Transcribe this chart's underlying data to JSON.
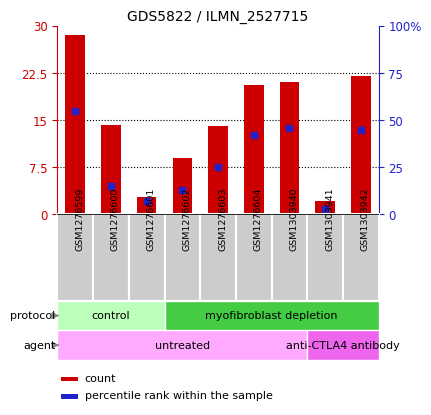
{
  "title": "GDS5822 / ILMN_2527715",
  "samples": [
    "GSM1276599",
    "GSM1276600",
    "GSM1276601",
    "GSM1276602",
    "GSM1276603",
    "GSM1276604",
    "GSM1303940",
    "GSM1303941",
    "GSM1303942"
  ],
  "counts": [
    28.5,
    14.2,
    2.8,
    9.0,
    14.0,
    20.5,
    21.0,
    2.2,
    22.0
  ],
  "percentiles": [
    55,
    15,
    7,
    13,
    25,
    42,
    46,
    3,
    45
  ],
  "ylim_left": [
    0,
    30
  ],
  "ylim_right": [
    0,
    100
  ],
  "yticks_left": [
    0,
    7.5,
    15,
    22.5,
    30
  ],
  "yticks_right": [
    0,
    25,
    50,
    75,
    100
  ],
  "yticklabels_left": [
    "0",
    "7.5",
    "15",
    "22.5",
    "30"
  ],
  "yticklabels_right": [
    "0",
    "25",
    "50",
    "75",
    "100%"
  ],
  "bar_color": "#cc0000",
  "dot_color": "#2222cc",
  "protocol_groups": [
    {
      "label": "control",
      "start": 0,
      "end": 3,
      "color": "#bbffbb"
    },
    {
      "label": "myofibroblast depletion",
      "start": 3,
      "end": 9,
      "color": "#44cc44"
    }
  ],
  "agent_groups": [
    {
      "label": "untreated",
      "start": 0,
      "end": 7,
      "color": "#ffaaff"
    },
    {
      "label": "anti-CTLA4 antibody",
      "start": 7,
      "end": 9,
      "color": "#ee66ee"
    }
  ],
  "legend_items": [
    {
      "color": "#cc0000",
      "label": "count"
    },
    {
      "color": "#2222cc",
      "label": "percentile rank within the sample"
    }
  ],
  "xtick_bg": "#cccccc",
  "grid_linestyle": ":",
  "grid_color": "black",
  "grid_linewidth": 0.8,
  "grid_levels": [
    7.5,
    15,
    22.5
  ],
  "bar_width": 0.55
}
